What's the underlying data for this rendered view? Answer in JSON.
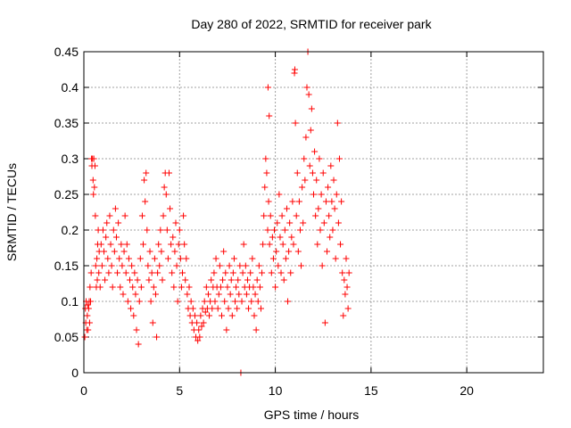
{
  "chart_data": {
    "type": "scatter",
    "title": "Day 280 of 2022, SRMTID for receiver park",
    "xlabel": "GPS time / hours",
    "ylabel": "SRMTID / TECUs",
    "xlim": [
      0,
      24
    ],
    "ylim": [
      0,
      0.45
    ],
    "xticks": [
      0,
      5,
      10,
      15,
      20
    ],
    "xtick_labels": [
      "0",
      "5",
      "10",
      "15",
      "20"
    ],
    "yticks": [
      0,
      0.05,
      0.1,
      0.15,
      0.2,
      0.25,
      0.3,
      0.35,
      0.4,
      0.45
    ],
    "ytick_labels": [
      "0",
      "0.05",
      "0.1",
      "0.15",
      "0.2",
      "0.25",
      "0.3",
      "0.35",
      "0.4",
      "0.45"
    ],
    "grid": true,
    "marker": "plus",
    "color": "#ff0000",
    "series": [
      {
        "name": "SRMTID",
        "points": [
          [
            0.05,
            0.05
          ],
          [
            0.08,
            0.09
          ],
          [
            0.1,
            0.07
          ],
          [
            0.12,
            0.1
          ],
          [
            0.15,
            0.06
          ],
          [
            0.18,
            0.08
          ],
          [
            0.2,
            0.095
          ],
          [
            0.22,
            0.06
          ],
          [
            0.25,
            0.09
          ],
          [
            0.28,
            0.1
          ],
          [
            0.3,
            0.07
          ],
          [
            0.32,
            0.12
          ],
          [
            0.35,
            0.1
          ],
          [
            0.38,
            0.14
          ],
          [
            0.4,
            0.3
          ],
          [
            0.42,
            0.29
          ],
          [
            0.45,
            0.3
          ],
          [
            0.48,
            0.27
          ],
          [
            0.5,
            0.25
          ],
          [
            0.52,
            0.3
          ],
          [
            0.55,
            0.26
          ],
          [
            0.58,
            0.29
          ],
          [
            0.6,
            0.22
          ],
          [
            0.62,
            0.15
          ],
          [
            0.65,
            0.12
          ],
          [
            0.68,
            0.16
          ],
          [
            0.7,
            0.13
          ],
          [
            0.72,
            0.18
          ],
          [
            0.75,
            0.2
          ],
          [
            0.78,
            0.14
          ],
          [
            0.8,
            0.17
          ],
          [
            0.85,
            0.12
          ],
          [
            0.9,
            0.18
          ],
          [
            0.95,
            0.15
          ],
          [
            1.0,
            0.2
          ],
          [
            1.05,
            0.17
          ],
          [
            1.1,
            0.13
          ],
          [
            1.15,
            0.19
          ],
          [
            1.2,
            0.21
          ],
          [
            1.25,
            0.16
          ],
          [
            1.3,
            0.14
          ],
          [
            1.35,
            0.22
          ],
          [
            1.4,
            0.18
          ],
          [
            1.45,
            0.15
          ],
          [
            1.5,
            0.12
          ],
          [
            1.55,
            0.2
          ],
          [
            1.6,
            0.17
          ],
          [
            1.65,
            0.23
          ],
          [
            1.7,
            0.19
          ],
          [
            1.75,
            0.14
          ],
          [
            1.8,
            0.21
          ],
          [
            1.85,
            0.16
          ],
          [
            1.9,
            0.12
          ],
          [
            1.95,
            0.18
          ],
          [
            2.0,
            0.15
          ],
          [
            2.05,
            0.11
          ],
          [
            2.1,
            0.17
          ],
          [
            2.15,
            0.22
          ],
          [
            2.2,
            0.14
          ],
          [
            2.25,
            0.18
          ],
          [
            2.3,
            0.1
          ],
          [
            2.35,
            0.16
          ],
          [
            2.4,
            0.13
          ],
          [
            2.45,
            0.09
          ],
          [
            2.5,
            0.15
          ],
          [
            2.55,
            0.12
          ],
          [
            2.6,
            0.08
          ],
          [
            2.65,
            0.14
          ],
          [
            2.7,
            0.11
          ],
          [
            2.75,
            0.06
          ],
          [
            2.8,
            0.13
          ],
          [
            2.85,
            0.04
          ],
          [
            2.9,
            0.1
          ],
          [
            2.95,
            0.16
          ],
          [
            3.0,
            0.12
          ],
          [
            3.05,
            0.22
          ],
          [
            3.1,
            0.18
          ],
          [
            3.15,
            0.27
          ],
          [
            3.2,
            0.24
          ],
          [
            3.25,
            0.28
          ],
          [
            3.3,
            0.2
          ],
          [
            3.35,
            0.15
          ],
          [
            3.4,
            0.13
          ],
          [
            3.45,
            0.17
          ],
          [
            3.5,
            0.1
          ],
          [
            3.55,
            0.14
          ],
          [
            3.6,
            0.07
          ],
          [
            3.65,
            0.12
          ],
          [
            3.7,
            0.16
          ],
          [
            3.75,
            0.11
          ],
          [
            3.8,
            0.05
          ],
          [
            3.85,
            0.14
          ],
          [
            3.9,
            0.18
          ],
          [
            3.95,
            0.15
          ],
          [
            4.0,
            0.2
          ],
          [
            4.05,
            0.17
          ],
          [
            4.1,
            0.13
          ],
          [
            4.15,
            0.22
          ],
          [
            4.2,
            0.26
          ],
          [
            4.25,
            0.28
          ],
          [
            4.3,
            0.25
          ],
          [
            4.35,
            0.2
          ],
          [
            4.4,
            0.16
          ],
          [
            4.45,
            0.28
          ],
          [
            4.5,
            0.23
          ],
          [
            4.55,
            0.18
          ],
          [
            4.6,
            0.14
          ],
          [
            4.65,
            0.19
          ],
          [
            4.7,
            0.12
          ],
          [
            4.75,
            0.17
          ],
          [
            4.8,
            0.21
          ],
          [
            4.85,
            0.15
          ],
          [
            4.9,
            0.1
          ],
          [
            4.95,
            0.18
          ],
          [
            5.0,
            0.2
          ],
          [
            5.05,
            0.16
          ],
          [
            5.1,
            0.12
          ],
          [
            5.15,
            0.14
          ],
          [
            5.2,
            0.22
          ],
          [
            5.25,
            0.18
          ],
          [
            5.3,
            0.13
          ],
          [
            5.35,
            0.16
          ],
          [
            5.4,
            0.11
          ],
          [
            5.45,
            0.09
          ],
          [
            5.5,
            0.12
          ],
          [
            5.55,
            0.08
          ],
          [
            5.6,
            0.1
          ],
          [
            5.65,
            0.07
          ],
          [
            5.7,
            0.09
          ],
          [
            5.75,
            0.06
          ],
          [
            5.8,
            0.08
          ],
          [
            5.85,
            0.05
          ],
          [
            5.9,
            0.07
          ],
          [
            5.95,
            0.045
          ],
          [
            6.0,
            0.06
          ],
          [
            6.05,
            0.05
          ],
          [
            6.1,
            0.08
          ],
          [
            6.15,
            0.065
          ],
          [
            6.2,
            0.09
          ],
          [
            6.25,
            0.07
          ],
          [
            6.3,
            0.1
          ],
          [
            6.35,
            0.085
          ],
          [
            6.4,
            0.12
          ],
          [
            6.45,
            0.09
          ],
          [
            6.5,
            0.11
          ],
          [
            6.55,
            0.08
          ],
          [
            6.6,
            0.1
          ],
          [
            6.65,
            0.13
          ],
          [
            6.7,
            0.09
          ],
          [
            6.75,
            0.12
          ],
          [
            6.8,
            0.14
          ],
          [
            6.85,
            0.1
          ],
          [
            6.9,
            0.16
          ],
          [
            6.95,
            0.12
          ],
          [
            7.0,
            0.09
          ],
          [
            7.05,
            0.11
          ],
          [
            7.1,
            0.15
          ],
          [
            7.15,
            0.12
          ],
          [
            7.2,
            0.08
          ],
          [
            7.25,
            0.13
          ],
          [
            7.3,
            0.17
          ],
          [
            7.35,
            0.1
          ],
          [
            7.4,
            0.14
          ],
          [
            7.45,
            0.06
          ],
          [
            7.5,
            0.12
          ],
          [
            7.55,
            0.09
          ],
          [
            7.6,
            0.15
          ],
          [
            7.65,
            0.11
          ],
          [
            7.7,
            0.13
          ],
          [
            7.75,
            0.08
          ],
          [
            7.8,
            0.14
          ],
          [
            7.85,
            0.16
          ],
          [
            7.9,
            0.1
          ],
          [
            7.95,
            0.12
          ],
          [
            8.0,
            0.09
          ],
          [
            8.05,
            0.13
          ],
          [
            8.1,
            0.11
          ],
          [
            8.15,
            0.15
          ],
          [
            8.2,
            0.0
          ],
          [
            8.25,
            0.1
          ],
          [
            8.3,
            0.14
          ],
          [
            8.35,
            0.18
          ],
          [
            8.4,
            0.12
          ],
          [
            8.45,
            0.15
          ],
          [
            8.5,
            0.11
          ],
          [
            8.55,
            0.13
          ],
          [
            8.6,
            0.09
          ],
          [
            8.65,
            0.12
          ],
          [
            8.7,
            0.14
          ],
          [
            8.75,
            0.1
          ],
          [
            8.8,
            0.16
          ],
          [
            8.85,
            0.12
          ],
          [
            8.9,
            0.08
          ],
          [
            8.95,
            0.11
          ],
          [
            9.0,
            0.06
          ],
          [
            9.05,
            0.13
          ],
          [
            9.1,
            0.1
          ],
          [
            9.15,
            0.15
          ],
          [
            9.2,
            0.12
          ],
          [
            9.25,
            0.09
          ],
          [
            9.3,
            0.14
          ],
          [
            9.35,
            0.18
          ],
          [
            9.4,
            0.22
          ],
          [
            9.45,
            0.26
          ],
          [
            9.5,
            0.3
          ],
          [
            9.55,
            0.28
          ],
          [
            9.6,
            0.2
          ],
          [
            9.62,
            0.4
          ],
          [
            9.65,
            0.24
          ],
          [
            9.68,
            0.36
          ],
          [
            9.7,
            0.18
          ],
          [
            9.75,
            0.22
          ],
          [
            9.8,
            0.14
          ],
          [
            9.85,
            0.19
          ],
          [
            9.9,
            0.16
          ],
          [
            9.95,
            0.2
          ],
          [
            10.0,
            0.12
          ],
          [
            10.05,
            0.17
          ],
          [
            10.1,
            0.21
          ],
          [
            10.15,
            0.15
          ],
          [
            10.2,
            0.25
          ],
          [
            10.25,
            0.19
          ],
          [
            10.3,
            0.14
          ],
          [
            10.35,
            0.22
          ],
          [
            10.4,
            0.18
          ],
          [
            10.45,
            0.13
          ],
          [
            10.5,
            0.2
          ],
          [
            10.55,
            0.16
          ],
          [
            10.6,
            0.23
          ],
          [
            10.65,
            0.1
          ],
          [
            10.7,
            0.17
          ],
          [
            10.75,
            0.21
          ],
          [
            10.8,
            0.14
          ],
          [
            10.85,
            0.19
          ],
          [
            10.9,
            0.24
          ],
          [
            10.95,
            0.18
          ],
          [
            11.0,
            0.42
          ],
          [
            11.02,
            0.425
          ],
          [
            11.05,
            0.35
          ],
          [
            11.1,
            0.22
          ],
          [
            11.15,
            0.28
          ],
          [
            11.2,
            0.17
          ],
          [
            11.25,
            0.24
          ],
          [
            11.3,
            0.2
          ],
          [
            11.35,
            0.15
          ],
          [
            11.4,
            0.26
          ],
          [
            11.45,
            0.21
          ],
          [
            11.5,
            0.3
          ],
          [
            11.55,
            0.27
          ],
          [
            11.6,
            0.33
          ],
          [
            11.65,
            0.4
          ],
          [
            11.7,
            0.45
          ],
          [
            11.75,
            0.39
          ],
          [
            11.8,
            0.29
          ],
          [
            11.85,
            0.34
          ],
          [
            11.9,
            0.37
          ],
          [
            11.95,
            0.28
          ],
          [
            12.0,
            0.25
          ],
          [
            12.05,
            0.31
          ],
          [
            12.1,
            0.22
          ],
          [
            12.15,
            0.27
          ],
          [
            12.2,
            0.18
          ],
          [
            12.25,
            0.23
          ],
          [
            12.3,
            0.3
          ],
          [
            12.35,
            0.2
          ],
          [
            12.4,
            0.25
          ],
          [
            12.45,
            0.15
          ],
          [
            12.5,
            0.28
          ],
          [
            12.55,
            0.21
          ],
          [
            12.6,
            0.07
          ],
          [
            12.65,
            0.24
          ],
          [
            12.7,
            0.17
          ],
          [
            12.75,
            0.26
          ],
          [
            12.8,
            0.22
          ],
          [
            12.85,
            0.19
          ],
          [
            12.9,
            0.29
          ],
          [
            12.95,
            0.24
          ],
          [
            13.0,
            0.2
          ],
          [
            13.05,
            0.27
          ],
          [
            13.1,
            0.23
          ],
          [
            13.15,
            0.16
          ],
          [
            13.2,
            0.25
          ],
          [
            13.25,
            0.35
          ],
          [
            13.3,
            0.21
          ],
          [
            13.35,
            0.3
          ],
          [
            13.4,
            0.18
          ],
          [
            13.45,
            0.24
          ],
          [
            13.5,
            0.14
          ],
          [
            13.55,
            0.08
          ],
          [
            13.6,
            0.13
          ],
          [
            13.65,
            0.11
          ],
          [
            13.7,
            0.16
          ],
          [
            13.75,
            0.12
          ],
          [
            13.8,
            0.09
          ],
          [
            13.85,
            0.14
          ]
        ]
      }
    ]
  }
}
